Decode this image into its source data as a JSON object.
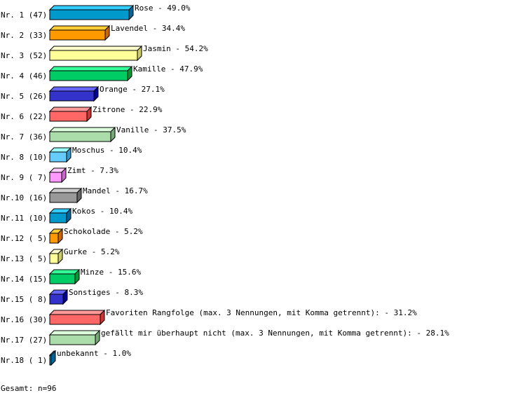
{
  "chart_data": {
    "type": "bar",
    "orientation": "horizontal",
    "style": "3d",
    "categories": [
      "Rose",
      "Lavendel",
      "Jasmin",
      "Kamille",
      "Orange",
      "Zitrone",
      "Vanille",
      "Moschus",
      "Zimt",
      "Mandel",
      "Kokos",
      "Schokolade",
      "Gurke",
      "Minze",
      "Sonstiges",
      "Favoriten Rangfolge (max. 3 Nennungen, mit Komma getrennt):",
      "gefällt mir überhaupt nicht (max. 3 Nennungen, mit Komma getrennt):",
      "unbekannt"
    ],
    "row_labels": [
      "Nr. 1 (47)",
      "Nr. 2 (33)",
      "Nr. 3 (52)",
      "Nr. 4 (46)",
      "Nr. 5 (26)",
      "Nr. 6 (22)",
      "Nr. 7 (36)",
      "Nr. 8 (10)",
      "Nr. 9 ( 7)",
      "Nr.10 (16)",
      "Nr.11 (10)",
      "Nr.12 ( 5)",
      "Nr.13 ( 5)",
      "Nr.14 (15)",
      "Nr.15 ( 8)",
      "Nr.16 (30)",
      "Nr.17 (27)",
      "Nr.18 ( 1)"
    ],
    "counts": [
      47,
      33,
      52,
      46,
      26,
      22,
      36,
      10,
      7,
      16,
      10,
      5,
      5,
      15,
      8,
      30,
      27,
      1
    ],
    "values": [
      49.0,
      34.4,
      54.2,
      47.9,
      27.1,
      22.9,
      37.5,
      10.4,
      7.3,
      16.7,
      10.4,
      5.2,
      5.2,
      15.6,
      8.3,
      31.2,
      28.1,
      1.0
    ],
    "value_labels": [
      "49.0%",
      "34.4%",
      "54.2%",
      "47.9%",
      "27.1%",
      "22.9%",
      "37.5%",
      "10.4%",
      "7.3%",
      "16.7%",
      "10.4%",
      "5.2%",
      "5.2%",
      "15.6%",
      "8.3%",
      "31.2%",
      "28.1%",
      "1.0%"
    ],
    "colors": [
      [
        "#0099cc",
        "#33ccff",
        "#006699"
      ],
      [
        "#ff9900",
        "#ffcc33",
        "#cc6600"
      ],
      [
        "#ffff99",
        "#ffffcc",
        "#cccc66"
      ],
      [
        "#00cc66",
        "#33ff99",
        "#009933"
      ],
      [
        "#3333cc",
        "#6666ff",
        "#000099"
      ],
      [
        "#ff6666",
        "#ff9999",
        "#cc3333"
      ],
      [
        "#aaddaa",
        "#ddffdd",
        "#77aa77"
      ],
      [
        "#66ccff",
        "#99ffff",
        "#3399cc"
      ],
      [
        "#ff99ff",
        "#ffccff",
        "#cc66cc"
      ],
      [
        "#999999",
        "#cccccc",
        "#666666"
      ],
      [
        "#0099cc",
        "#33ccff",
        "#006699"
      ],
      [
        "#ff9900",
        "#ffcc33",
        "#cc6600"
      ],
      [
        "#ffff99",
        "#ffffcc",
        "#cccc66"
      ],
      [
        "#00cc66",
        "#33ff99",
        "#009933"
      ],
      [
        "#3333cc",
        "#6666ff",
        "#000099"
      ],
      [
        "#ff6666",
        "#ff9999",
        "#cc3333"
      ],
      [
        "#aaddaa",
        "#ddffdd",
        "#77aa77"
      ],
      [
        "#0099cc",
        "#33ccff",
        "#006699"
      ]
    ],
    "xlim": [
      0,
      100
    ],
    "grid": false,
    "legend": "none"
  },
  "footer": {
    "total": "Gesamt: n=96"
  }
}
